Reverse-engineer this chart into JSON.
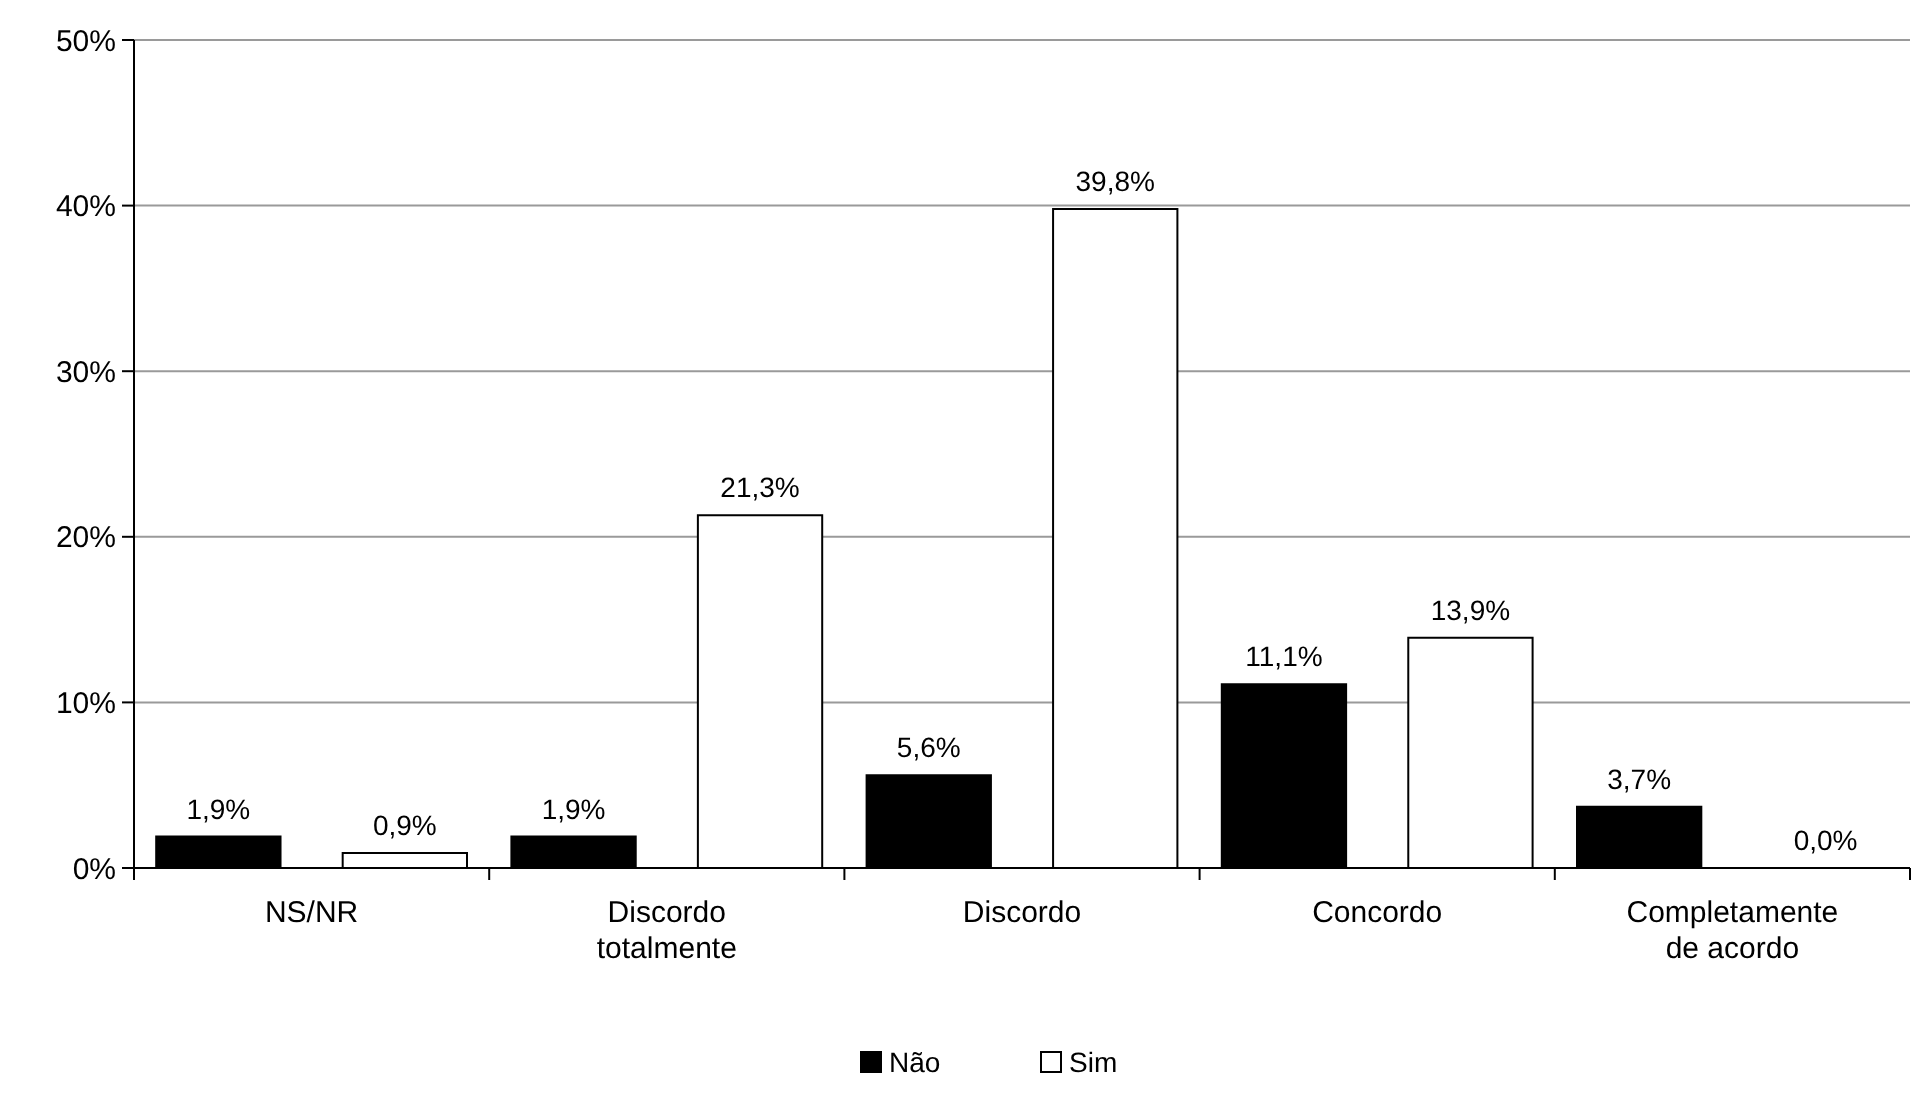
{
  "chart_data": {
    "type": "bar",
    "categories": [
      "NS/NR",
      "Discordo totalmente",
      "Discordo",
      "Concordo",
      "Completamente de acordo"
    ],
    "series": [
      {
        "name": "Não",
        "color": "#000000",
        "values": [
          1.9,
          1.9,
          5.6,
          11.1,
          3.7
        ],
        "value_labels": [
          "1,9%",
          "1,9%",
          "5,6%",
          "11,1%",
          "3,7%"
        ]
      },
      {
        "name": "Sim",
        "color": "#ffffff",
        "values": [
          0.9,
          21.3,
          39.8,
          13.9,
          0.0
        ],
        "value_labels": [
          "0,9%",
          "21,3%",
          "39,8%",
          "13,9%",
          "0,0%"
        ]
      }
    ],
    "ylim": [
      0,
      50
    ],
    "yticks": [
      {
        "value": 0,
        "label": "0%"
      },
      {
        "value": 10,
        "label": "10%"
      },
      {
        "value": 20,
        "label": "20%"
      },
      {
        "value": 30,
        "label": "30%"
      },
      {
        "value": 40,
        "label": "40%"
      },
      {
        "value": 50,
        "label": "50%"
      }
    ],
    "grid": "y",
    "legend": "bottom"
  }
}
